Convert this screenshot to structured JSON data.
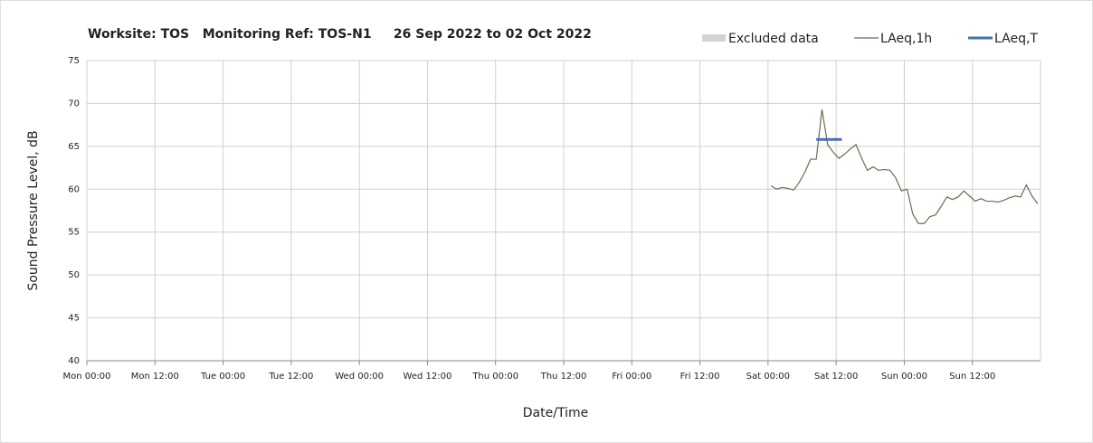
{
  "chart_data": {
    "type": "line",
    "title": "Worksite: TOS   Monitoring Ref: TOS-N1     26 Sep 2022 to 02 Oct 2022",
    "xlabel": "Date/Time",
    "ylabel": "Sound Pressure Level, dB",
    "xlim": [
      0,
      168
    ],
    "xticks": [
      {
        "value": 0,
        "label": "Mon 00:00"
      },
      {
        "value": 12,
        "label": "Mon 12:00"
      },
      {
        "value": 24,
        "label": "Tue 00:00"
      },
      {
        "value": 36,
        "label": "Tue 12:00"
      },
      {
        "value": 48,
        "label": "Wed 00:00"
      },
      {
        "value": 60,
        "label": "Wed 12:00"
      },
      {
        "value": 72,
        "label": "Thu 00:00"
      },
      {
        "value": 84,
        "label": "Thu 12:00"
      },
      {
        "value": 96,
        "label": "Fri 00:00"
      },
      {
        "value": 108,
        "label": "Fri 12:00"
      },
      {
        "value": 120,
        "label": "Sat 00:00"
      },
      {
        "value": 132,
        "label": "Sat 12:00"
      },
      {
        "value": 144,
        "label": "Sun 00:00"
      },
      {
        "value": 156,
        "label": "Sun 12:00"
      }
    ],
    "ylim": [
      40,
      75
    ],
    "yticks": [
      40,
      45,
      50,
      55,
      60,
      65,
      70,
      75
    ],
    "grid": true,
    "series": [
      {
        "name": "Excluded data",
        "color": "#d3d3d3",
        "kind": "area",
        "x": [],
        "values": []
      },
      {
        "name": "LAeq,1h",
        "color": "#5e7350",
        "kind": "line",
        "x": [
          120.5,
          121.5,
          122.5,
          123.5,
          124.5,
          125.5,
          126.5,
          127.5,
          128.5,
          129.5,
          130.5,
          131.5,
          132.5,
          133.5,
          134.5,
          135.5,
          136.5,
          137.5,
          138.5,
          139.5,
          140.5,
          141.5,
          142.5,
          143.5,
          144.5,
          145.5,
          146.5,
          147.5,
          148.5,
          149.5,
          150.5,
          151.5,
          152.5,
          153.5,
          154.5,
          155.5,
          156.5,
          157.5,
          158.5,
          159.5,
          160.5,
          161.5,
          162.5,
          163.5,
          164.5,
          165.5,
          166.5,
          167.5
        ],
        "values": [
          60.4,
          60.0,
          60.2,
          60.1,
          59.9,
          60.8,
          62.0,
          63.5,
          63.5,
          69.3,
          65.2,
          64.3,
          63.6,
          64.1,
          64.7,
          65.2,
          63.6,
          62.2,
          62.6,
          62.2,
          62.3,
          62.2,
          61.3,
          59.8,
          60.0,
          57.1,
          56.0,
          56.0,
          56.8,
          57.0,
          58.0,
          59.1,
          58.8,
          59.1,
          59.8,
          59.2,
          58.6,
          58.9,
          58.6,
          58.6,
          58.5,
          58.7,
          59.0,
          59.2,
          59.1,
          60.5,
          59.2,
          58.3
        ]
      },
      {
        "name": "LAeq,T",
        "color": "#4a6fb5",
        "kind": "thick",
        "x": [
          128.5,
          133
        ],
        "values": [
          65.8,
          65.8
        ]
      }
    ]
  }
}
